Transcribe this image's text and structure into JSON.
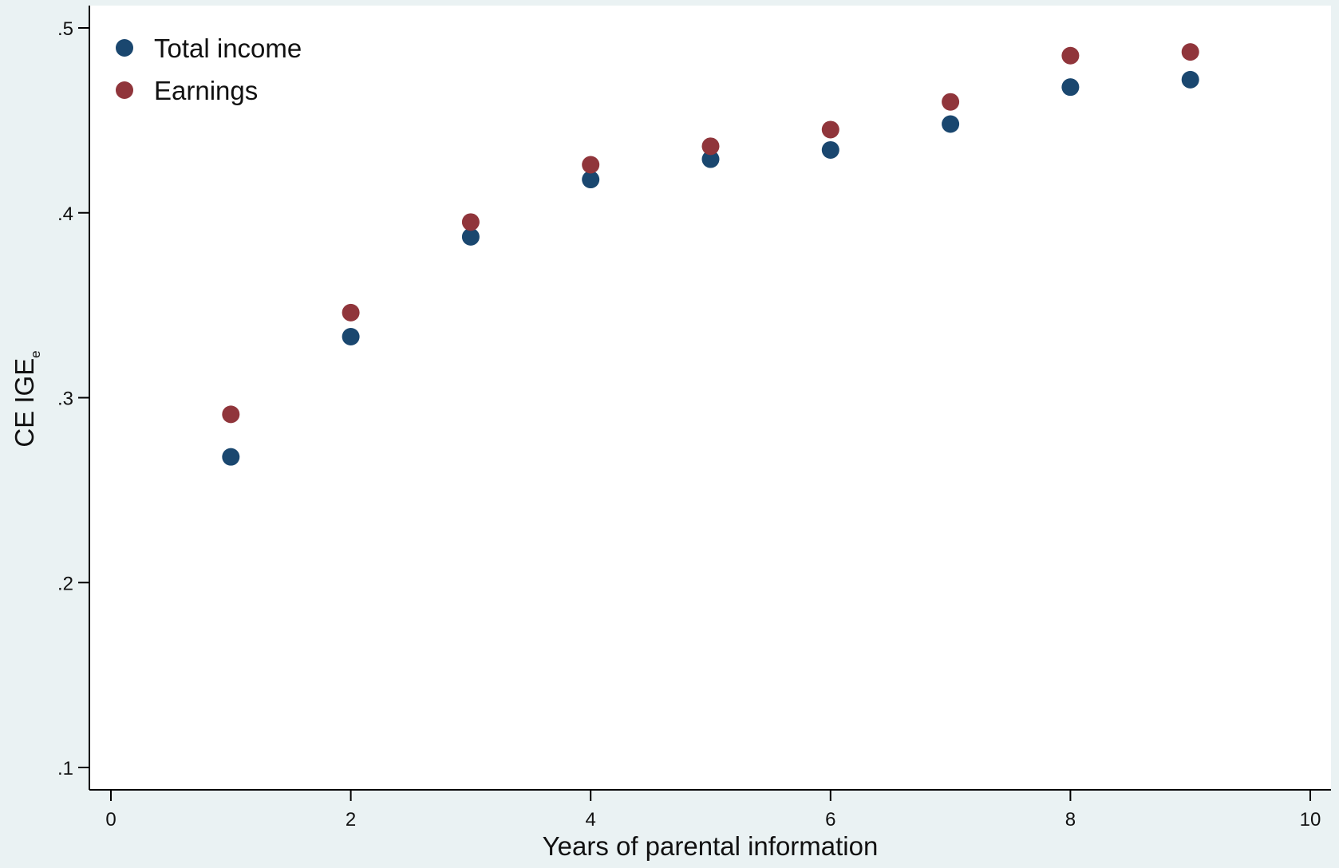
{
  "chart_data": {
    "type": "scatter",
    "title": "",
    "xlabel": "Years of parental information",
    "ylabel": {
      "main": "CE IGE",
      "subscript": "e"
    },
    "xlim": [
      0,
      10
    ],
    "ylim": [
      0.1,
      0.5
    ],
    "x_ticks": [
      0,
      2,
      4,
      6,
      8,
      10
    ],
    "x_tick_labels": [
      "0",
      "2",
      "4",
      "6",
      "8",
      "10"
    ],
    "y_ticks": [
      0.1,
      0.2,
      0.3,
      0.4,
      0.5
    ],
    "y_tick_labels": [
      ".1",
      ".2",
      ".3",
      ".4",
      ".5"
    ],
    "grid": false,
    "legend_position": "top-left",
    "series": [
      {
        "name": "Total income",
        "color": "#1a476f",
        "x": [
          1,
          2,
          3,
          4,
          5,
          6,
          7,
          8,
          9
        ],
        "y": [
          0.268,
          0.333,
          0.387,
          0.418,
          0.429,
          0.434,
          0.448,
          0.468,
          0.472
        ]
      },
      {
        "name": "Earnings",
        "color": "#90353b",
        "x": [
          1,
          2,
          3,
          4,
          5,
          6,
          7,
          8,
          9
        ],
        "y": [
          0.291,
          0.346,
          0.395,
          0.426,
          0.436,
          0.445,
          0.46,
          0.485,
          0.487
        ]
      }
    ]
  }
}
